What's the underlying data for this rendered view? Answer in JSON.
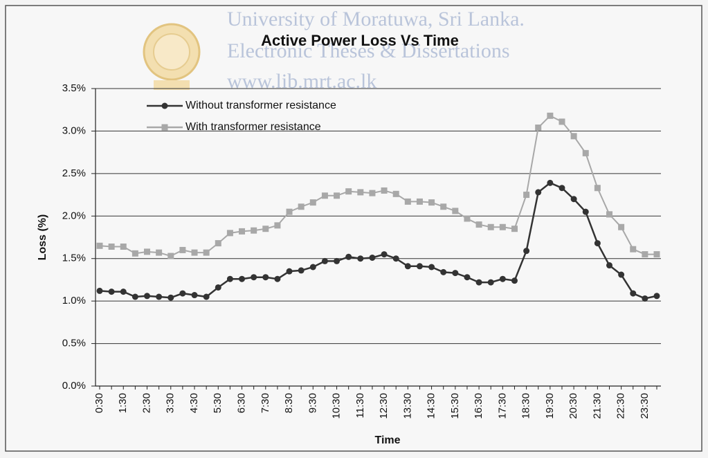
{
  "watermark": [
    "University of Moratuwa, Sri Lanka.",
    "Electronic Theses & Dissertations",
    "www.lib.mrt.ac.lk"
  ],
  "chart_data": {
    "type": "line",
    "title": "Active Power Loss Vs Time",
    "x_label": "Time",
    "y_label": "Loss (%)",
    "categories": [
      "0:30",
      null,
      "1:30",
      null,
      "2:30",
      null,
      "3:30",
      null,
      "4:30",
      null,
      "5:30",
      null,
      "6:30",
      null,
      "7:30",
      null,
      "8:30",
      null,
      "9:30",
      null,
      "10:30",
      null,
      "11:30",
      null,
      "12:30",
      null,
      "13:30",
      null,
      "14:30",
      null,
      "15:30",
      null,
      "16:30",
      null,
      "17:30",
      null,
      "18:30",
      null,
      "19:30",
      null,
      "20:30",
      null,
      "21:30",
      null,
      "22:30",
      null,
      "23:30",
      null
    ],
    "series": [
      {
        "name": "Without transformer resistance",
        "color": "#333333",
        "marker": "circle",
        "values": [
          1.12,
          1.11,
          1.11,
          1.05,
          1.06,
          1.05,
          1.04,
          1.09,
          1.07,
          1.05,
          1.16,
          1.26,
          1.26,
          1.28,
          1.28,
          1.26,
          1.35,
          1.36,
          1.4,
          1.47,
          1.47,
          1.52,
          1.5,
          1.51,
          1.55,
          1.5,
          1.41,
          1.41,
          1.4,
          1.34,
          1.33,
          1.28,
          1.22,
          1.22,
          1.26,
          1.24,
          1.59,
          2.28,
          2.39,
          2.33,
          2.2,
          2.05,
          1.68,
          1.42,
          1.31,
          1.09,
          1.03,
          1.06
        ]
      },
      {
        "name": "With transformer resistance",
        "color": "#a8a8a8",
        "marker": "square",
        "values": [
          1.65,
          1.64,
          1.64,
          1.56,
          1.58,
          1.57,
          1.53,
          1.6,
          1.57,
          1.57,
          1.68,
          1.8,
          1.82,
          1.83,
          1.85,
          1.89,
          2.05,
          2.11,
          2.16,
          2.24,
          2.24,
          2.29,
          2.28,
          2.27,
          2.3,
          2.26,
          2.17,
          2.17,
          2.16,
          2.11,
          2.06,
          1.97,
          1.9,
          1.87,
          1.87,
          1.85,
          2.25,
          3.04,
          3.18,
          3.11,
          2.94,
          2.74,
          2.33,
          2.02,
          1.87,
          1.61,
          1.55,
          1.55
        ]
      }
    ],
    "ylim": [
      0,
      3.5
    ],
    "yticks": [
      {
        "value": 0,
        "label": "0.0%"
      },
      {
        "value": 0.5,
        "label": "0.5%"
      },
      {
        "value": 1,
        "label": "1.0%"
      },
      {
        "value": 1.5,
        "label": "1.5%"
      },
      {
        "value": 2,
        "label": "2.0%"
      },
      {
        "value": 2.5,
        "label": "2.5%"
      },
      {
        "value": 3,
        "label": "3.0%"
      },
      {
        "value": 3.5,
        "label": "3.5%"
      }
    ],
    "grid": true,
    "legend": "upper left"
  }
}
